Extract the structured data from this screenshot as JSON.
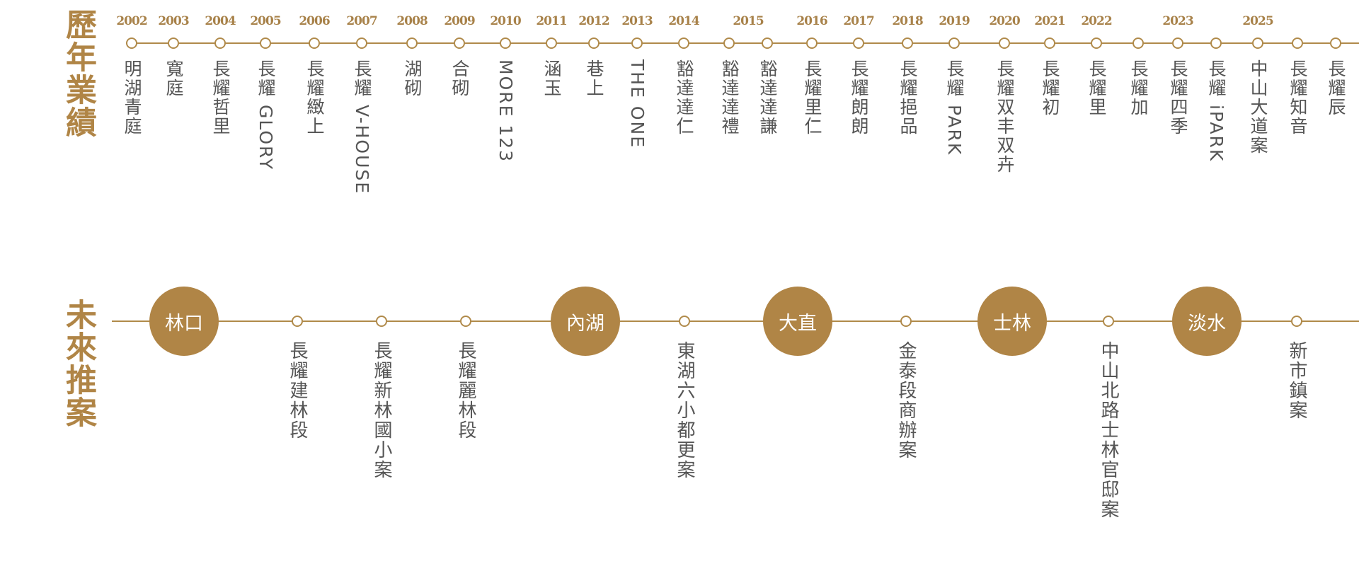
{
  "colors": {
    "accent": "#b08546",
    "text": "#555555"
  },
  "history": {
    "title": "歷年業績",
    "items": [
      "明湖青庭",
      "寬庭",
      "長耀哲里",
      "長耀 GLORY",
      "長耀緻上",
      "長耀 V-HOUSE",
      "湖砌",
      "合砌",
      "MORE 123",
      "涵玉",
      "巷上",
      "THE ONE",
      "豁達達仁",
      "豁達達禮",
      "豁達達謙",
      "長耀里仁",
      "長耀朗朗",
      "長耀挹品",
      "長耀 PARK",
      "長耀双丰双卉",
      "長耀初",
      "長耀里",
      "長耀加",
      "長耀四季",
      "長耀 iPARK",
      "中山大道案",
      "長耀知音",
      "長耀辰"
    ],
    "years": [
      {
        "label": "2002",
        "items": [
          0
        ]
      },
      {
        "label": "2003",
        "items": [
          1
        ]
      },
      {
        "label": "2004",
        "items": [
          2
        ]
      },
      {
        "label": "2005",
        "items": [
          3
        ]
      },
      {
        "label": "2006",
        "items": [
          4
        ]
      },
      {
        "label": "2007",
        "items": [
          5
        ]
      },
      {
        "label": "2008",
        "items": [
          6
        ]
      },
      {
        "label": "2009",
        "items": [
          7
        ]
      },
      {
        "label": "2010",
        "items": [
          8
        ]
      },
      {
        "label": "2011",
        "items": [
          9
        ]
      },
      {
        "label": "2012",
        "items": [
          10
        ]
      },
      {
        "label": "2013",
        "items": [
          11
        ]
      },
      {
        "label": "2014",
        "items": [
          12
        ]
      },
      {
        "label": "2015",
        "items": [
          13,
          14
        ]
      },
      {
        "label": "2016",
        "items": [
          15
        ]
      },
      {
        "label": "2017",
        "items": [
          16
        ]
      },
      {
        "label": "2018",
        "items": [
          17
        ]
      },
      {
        "label": "2019",
        "items": [
          18
        ]
      },
      {
        "label": "2020",
        "items": [
          19
        ]
      },
      {
        "label": "2021",
        "items": [
          20
        ]
      },
      {
        "label": "2022",
        "items": [
          21
        ]
      },
      {
        "label": "2023",
        "items": [
          23
        ]
      },
      {
        "label": "2025",
        "items": [
          25
        ]
      }
    ]
  },
  "future": {
    "title": "未來推案",
    "regions": [
      "林口",
      "內湖",
      "大直",
      "士林",
      "淡水"
    ],
    "items": [
      "長耀建林段",
      "長耀新林國小案",
      "長耀麗林段",
      "東湖六小都更案",
      "金泰段商辦案",
      "中山北路士林官邸案",
      "新市鎮案"
    ]
  }
}
